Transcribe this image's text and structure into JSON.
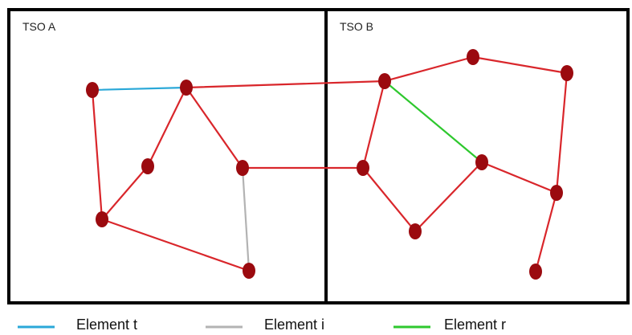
{
  "zones": [
    {
      "id": "tso-a",
      "label": "TSO A"
    },
    {
      "id": "tso-b",
      "label": "TSO B"
    }
  ],
  "colors": {
    "zone_border": "#000000",
    "line_default": "#d9262b",
    "node_fill": "#9b0a0f",
    "element_t": "#2aa8d8",
    "element_i": "#b3b3b3",
    "element_r": "#2ec82e"
  },
  "legend": [
    {
      "key": "element_t",
      "label": "Element t"
    },
    {
      "key": "element_i",
      "label": "Element i"
    },
    {
      "key": "element_r",
      "label": "Element r"
    }
  ]
}
